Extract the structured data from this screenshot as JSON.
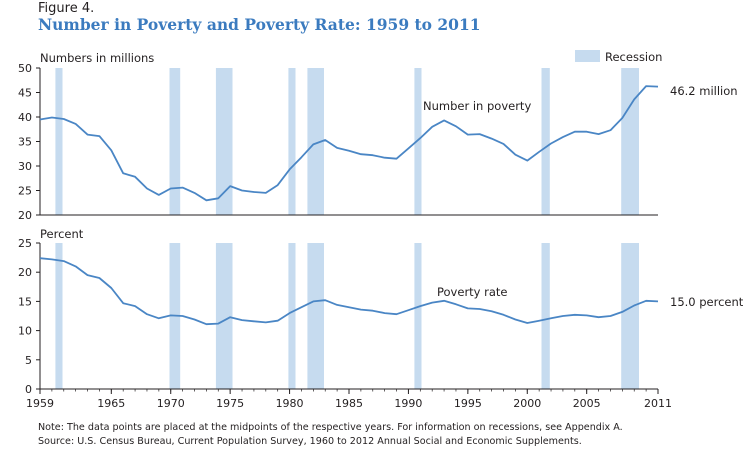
{
  "figure": {
    "label": "Figure 4.",
    "title": "Number in Poverty and Poverty Rate: 1959 to 2011"
  },
  "legend": {
    "label": "Recession",
    "color": "#c6dbef"
  },
  "line_color": "#4a86c5",
  "notes": [
    "Note: The data points are placed at the midpoints of the respective years. For information on recessions, see Appendix A.",
    "Source: U.S. Census Bureau, Current Population Survey, 1960 to 2012 Annual Social and Economic Supplements."
  ],
  "chart_data": [
    {
      "type": "line",
      "ylabel": "Numbers in millions",
      "ylim": [
        20,
        50
      ],
      "yticks": [
        20,
        25,
        30,
        35,
        40,
        45,
        50
      ],
      "series_label": "Number in poverty",
      "end_label": "46.2 million",
      "x": [
        1959,
        1960,
        1961,
        1962,
        1963,
        1964,
        1965,
        1966,
        1967,
        1968,
        1969,
        1970,
        1971,
        1972,
        1973,
        1974,
        1975,
        1976,
        1977,
        1978,
        1979,
        1980,
        1981,
        1982,
        1983,
        1984,
        1985,
        1986,
        1987,
        1988,
        1989,
        1990,
        1991,
        1992,
        1993,
        1994,
        1995,
        1996,
        1997,
        1998,
        1999,
        2000,
        2001,
        2002,
        2003,
        2004,
        2005,
        2006,
        2007,
        2008,
        2009,
        2010,
        2011
      ],
      "values": [
        39.5,
        39.9,
        39.6,
        38.6,
        36.4,
        36.1,
        33.2,
        28.5,
        27.8,
        25.4,
        24.1,
        25.4,
        25.6,
        24.5,
        23.0,
        23.4,
        25.9,
        25.0,
        24.7,
        24.5,
        26.1,
        29.3,
        31.8,
        34.4,
        35.3,
        33.7,
        33.1,
        32.4,
        32.2,
        31.7,
        31.5,
        33.6,
        35.7,
        38.0,
        39.3,
        38.1,
        36.4,
        36.5,
        35.6,
        34.5,
        32.3,
        31.1,
        32.9,
        34.6,
        35.9,
        37.0,
        37.0,
        36.5,
        37.3,
        39.8,
        43.6,
        46.3,
        46.2
      ]
    },
    {
      "type": "line",
      "ylabel": "Percent",
      "ylim": [
        0,
        25
      ],
      "yticks": [
        0,
        5,
        10,
        15,
        20,
        25
      ],
      "series_label": "Poverty rate",
      "end_label": "15.0 percent",
      "x": [
        1959,
        1960,
        1961,
        1962,
        1963,
        1964,
        1965,
        1966,
        1967,
        1968,
        1969,
        1970,
        1971,
        1972,
        1973,
        1974,
        1975,
        1976,
        1977,
        1978,
        1979,
        1980,
        1981,
        1982,
        1983,
        1984,
        1985,
        1986,
        1987,
        1988,
        1989,
        1990,
        1991,
        1992,
        1993,
        1994,
        1995,
        1996,
        1997,
        1998,
        1999,
        2000,
        2001,
        2002,
        2003,
        2004,
        2005,
        2006,
        2007,
        2008,
        2009,
        2010,
        2011
      ],
      "values": [
        22.4,
        22.2,
        21.9,
        21.0,
        19.5,
        19.0,
        17.3,
        14.7,
        14.2,
        12.8,
        12.1,
        12.6,
        12.5,
        11.9,
        11.1,
        11.2,
        12.3,
        11.8,
        11.6,
        11.4,
        11.7,
        13.0,
        14.0,
        15.0,
        15.2,
        14.4,
        14.0,
        13.6,
        13.4,
        13.0,
        12.8,
        13.5,
        14.2,
        14.8,
        15.1,
        14.5,
        13.8,
        13.7,
        13.3,
        12.7,
        11.9,
        11.3,
        11.7,
        12.1,
        12.5,
        12.7,
        12.6,
        12.3,
        12.5,
        13.2,
        14.3,
        15.1,
        15.0
      ]
    }
  ],
  "x_axis": {
    "range": [
      1959,
      2011
    ],
    "tick_labels": [
      1959,
      1965,
      1970,
      1975,
      1980,
      1985,
      1990,
      1995,
      2000,
      2005,
      2011
    ]
  },
  "recessions": [
    [
      1960.3,
      1960.9
    ],
    [
      1969.9,
      1970.8
    ],
    [
      1973.8,
      1975.2
    ],
    [
      1979.9,
      1980.5
    ],
    [
      1981.5,
      1982.9
    ],
    [
      1990.5,
      1991.1
    ],
    [
      2001.2,
      2001.9
    ],
    [
      2007.9,
      2009.4
    ]
  ]
}
